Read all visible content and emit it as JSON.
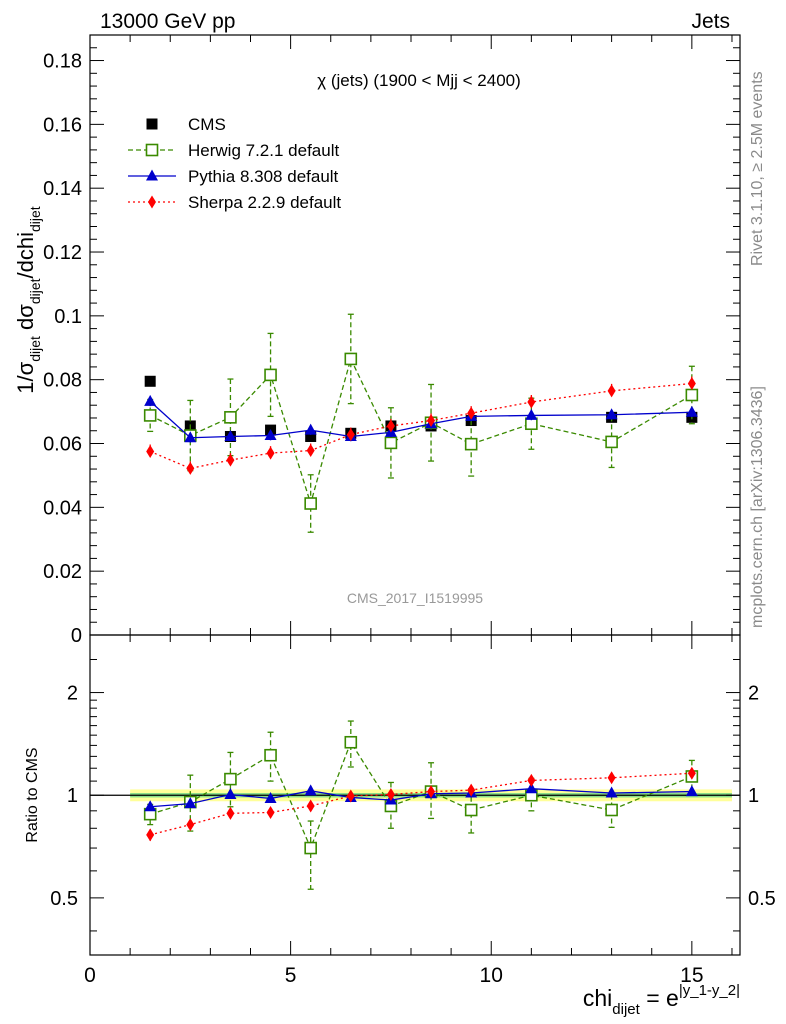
{
  "header": {
    "left": "13000 GeV pp",
    "right": "Jets",
    "plot_title": "χ (jets) (1900 < Mjj < 2400)",
    "analysis_id": "CMS_2017_I1519995",
    "side_rivet": "Rivet 3.1.10, ≥ 2.5M events",
    "side_mcplots": "mcplots.cern.ch [arXiv:1306.3436]"
  },
  "axes": {
    "ylabel_parts": [
      "1/σ",
      "dijet",
      " dσ",
      "dijet",
      "/dchi",
      "dijet"
    ],
    "ratio_ylabel": "Ratio to CMS",
    "xlabel_parts": [
      "chi",
      "dijet",
      " = e",
      "|y_1-y_2|"
    ]
  },
  "chart_data": [
    {
      "type": "scatter",
      "panel": "main",
      "xlim": [
        0,
        16.2
      ],
      "ylim": [
        0,
        0.188
      ],
      "x_ticks": [
        0,
        5,
        10,
        15
      ],
      "y_ticks": [
        0,
        0.02,
        0.04,
        0.06,
        0.08,
        0.1,
        0.12,
        0.14,
        0.16,
        0.18
      ],
      "y_tick_labels": [
        "0",
        "0.02",
        "0.04",
        "0.06",
        "0.08",
        "0.1",
        "0.12",
        "0.14",
        "0.16",
        "0.18"
      ],
      "x": [
        1.5,
        2.5,
        3.5,
        4.5,
        5.5,
        6.5,
        7.5,
        8.5,
        9.5,
        11,
        13,
        15
      ],
      "series": [
        {
          "name": "CMS",
          "color": "#000000",
          "marker": "square-filled",
          "line": "none",
          "values": [
            0.0795,
            0.0655,
            0.0622,
            0.0642,
            0.0622,
            0.0632,
            0.0655,
            0.0655,
            0.0672,
            0.0662,
            0.0682,
            0.0682
          ],
          "errors": [
            0.001,
            0.001,
            0.001,
            0.001,
            0.001,
            0.001,
            0.001,
            0.001,
            0.001,
            0.001,
            0.001,
            0.001
          ]
        },
        {
          "name": "Herwig 7.2.1 default",
          "color": "#3a8a00",
          "marker": "square-open",
          "line": "dashed",
          "values": [
            0.0688,
            0.0625,
            0.0682,
            0.0815,
            0.0412,
            0.0865,
            0.0602,
            0.0665,
            0.0598,
            0.0662,
            0.0605,
            0.0752
          ],
          "errors": [
            0.005,
            0.011,
            0.012,
            0.013,
            0.009,
            0.014,
            0.011,
            0.012,
            0.01,
            0.008,
            0.008,
            0.009
          ]
        },
        {
          "name": "Pythia 8.308 default",
          "color": "#0000cc",
          "marker": "triangle-filled",
          "line": "solid",
          "values": [
            0.0732,
            0.0618,
            0.0622,
            0.0625,
            0.0642,
            0.0622,
            0.0635,
            0.0662,
            0.0685,
            0.0688,
            0.069,
            0.0698
          ],
          "errors": [
            0.0015,
            0.0015,
            0.0015,
            0.0015,
            0.0015,
            0.0015,
            0.0015,
            0.0015,
            0.0015,
            0.0015,
            0.0015,
            0.0015
          ]
        },
        {
          "name": "Sherpa 2.2.9 default",
          "color": "#ff0000",
          "marker": "diamond-filled",
          "line": "dotted",
          "values": [
            0.0575,
            0.0522,
            0.0548,
            0.057,
            0.0578,
            0.0628,
            0.0655,
            0.0672,
            0.0695,
            0.073,
            0.0765,
            0.0788
          ],
          "errors": [
            0.0022,
            0.0022,
            0.0022,
            0.0022,
            0.0022,
            0.0022,
            0.0022,
            0.0022,
            0.0022,
            0.0022,
            0.0022,
            0.0022
          ]
        }
      ]
    },
    {
      "type": "scatter",
      "panel": "ratio",
      "scale": "log",
      "xlim": [
        0,
        16.2
      ],
      "ylim": [
        0.34,
        2.95
      ],
      "y_ticks": [
        0.5,
        1,
        2
      ],
      "y_tick_labels": [
        "0.5",
        "1",
        "2"
      ],
      "band_x": [
        1,
        16
      ],
      "band_inner": [
        0.985,
        1.015
      ],
      "band_outer": [
        0.96,
        1.04
      ],
      "band_colors": [
        "#ffff99",
        "#88dd88"
      ],
      "x": [
        1.5,
        2.5,
        3.5,
        4.5,
        5.5,
        6.5,
        7.5,
        8.5,
        9.5,
        11,
        13,
        15
      ],
      "series": [
        {
          "name": "Herwig 7.2.1 default",
          "color": "#3a8a00",
          "marker": "square-open",
          "line": "dashed",
          "values": [
            0.88,
            0.955,
            1.115,
            1.31,
            0.7,
            1.43,
            0.93,
            1.025,
            0.905,
            1.0,
            0.905,
            1.135
          ],
          "err_lo": [
            0.06,
            0.17,
            0.19,
            0.21,
            0.17,
            0.22,
            0.13,
            0.17,
            0.13,
            0.1,
            0.1,
            0.11
          ],
          "err_hi": [
            0.06,
            0.19,
            0.22,
            0.22,
            0.14,
            0.22,
            0.16,
            0.22,
            0.14,
            0.12,
            0.1,
            0.13
          ]
        },
        {
          "name": "Pythia 8.308 default",
          "color": "#0000cc",
          "marker": "triangle-filled",
          "line": "solid",
          "values": [
            0.925,
            0.945,
            1.005,
            0.978,
            1.03,
            0.985,
            0.968,
            1.01,
            1.015,
            1.045,
            1.015,
            1.025
          ],
          "err_lo": [
            0.02,
            0.02,
            0.02,
            0.02,
            0.02,
            0.02,
            0.02,
            0.02,
            0.02,
            0.02,
            0.02,
            0.02
          ],
          "err_hi": [
            0.02,
            0.02,
            0.02,
            0.02,
            0.02,
            0.02,
            0.02,
            0.02,
            0.02,
            0.02,
            0.02,
            0.02
          ]
        },
        {
          "name": "Sherpa 2.2.9 default",
          "color": "#ff0000",
          "marker": "diamond-filled",
          "line": "dotted",
          "values": [
            0.765,
            0.82,
            0.885,
            0.89,
            0.93,
            0.995,
            1.005,
            1.025,
            1.035,
            1.105,
            1.125,
            1.16
          ],
          "err_lo": [
            0.03,
            0.03,
            0.03,
            0.03,
            0.03,
            0.03,
            0.03,
            0.03,
            0.03,
            0.03,
            0.03,
            0.03
          ],
          "err_hi": [
            0.03,
            0.03,
            0.03,
            0.03,
            0.03,
            0.03,
            0.03,
            0.03,
            0.03,
            0.03,
            0.03,
            0.03
          ]
        }
      ]
    }
  ]
}
